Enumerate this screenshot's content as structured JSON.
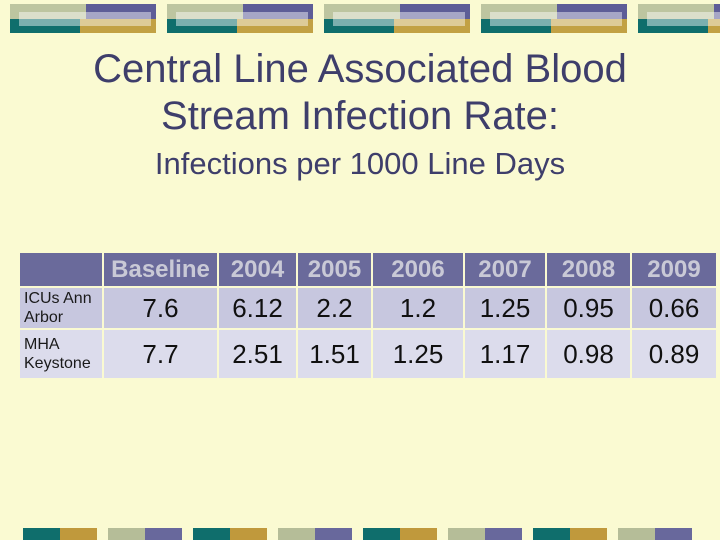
{
  "slide": {
    "title_line1": "Central Line Associated Blood",
    "title_line2": "Stream Infection Rate:",
    "subtitle": "Infections per 1000 Line Days"
  },
  "table": {
    "columns": [
      "",
      "Baseline",
      "2004",
      "2005",
      "2006",
      "2007",
      "2008",
      "2009"
    ],
    "rows": [
      {
        "label": "ICUs Ann Arbor",
        "values": [
          "7.6",
          "6.12",
          "2.2",
          "1.2",
          "1.25",
          "0.95",
          "0.66"
        ]
      },
      {
        "label": "MHA Keystone",
        "values": [
          "7.7",
          "2.51",
          "1.51",
          "1.25",
          "1.17",
          "0.98",
          "0.89"
        ]
      }
    ]
  },
  "chart_data": {
    "type": "table",
    "title": "Central Line Associated Blood Stream Infection Rate: Infections per 1000 Line Days",
    "categories": [
      "Baseline",
      "2004",
      "2005",
      "2006",
      "2007",
      "2008",
      "2009"
    ],
    "series": [
      {
        "name": "ICUs Ann Arbor",
        "values": [
          7.6,
          6.12,
          2.2,
          1.2,
          1.25,
          0.95,
          0.66
        ]
      },
      {
        "name": "MHA Keystone",
        "values": [
          7.7,
          2.51,
          1.51,
          1.25,
          1.17,
          0.98,
          0.89
        ]
      }
    ]
  },
  "colors": {
    "slide_background": "#FAFAD2",
    "title_text": "#3e3e6b",
    "table_header_bg": "#6a6a9b",
    "table_header_text": "#c9c9d6",
    "table_row1_bg": "#c7c7df",
    "table_row2_bg": "#dcdcec",
    "accent_teal": "#0f6e6c",
    "accent_gold": "#c2a144",
    "accent_sage": "#bdc5a0",
    "accent_purple": "#5d5d97"
  }
}
